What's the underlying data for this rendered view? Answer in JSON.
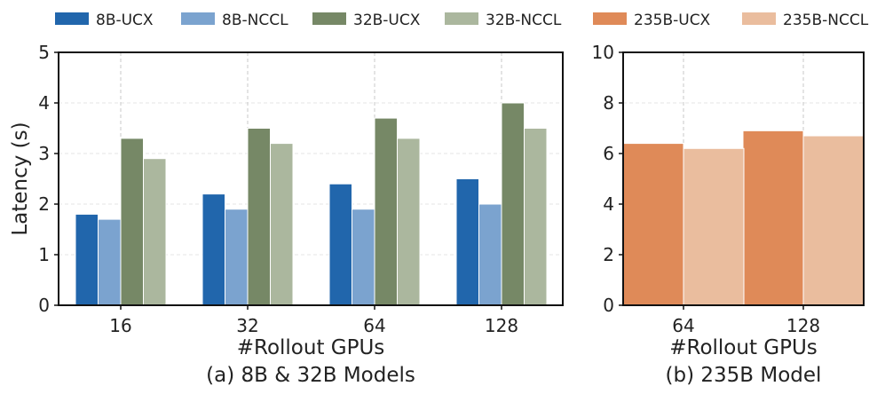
{
  "legend": [
    {
      "key": "8B-UCX",
      "label": "8B-UCX",
      "color": "#2166ac"
    },
    {
      "key": "8B-NCCL",
      "label": "8B-NCCL",
      "color": "#7ba3cf"
    },
    {
      "key": "32B-UCX",
      "label": "32B-UCX",
      "color": "#768866"
    },
    {
      "key": "32B-NCCL",
      "label": "32B-NCCL",
      "color": "#abb79e"
    },
    {
      "key": "235B-UCX",
      "label": "235B-UCX",
      "color": "#df8a58"
    },
    {
      "key": "235B-NCCL",
      "label": "235B-NCCL",
      "color": "#eabd9e"
    }
  ],
  "chart_data": [
    {
      "type": "bar",
      "id": "a",
      "title": "(a) 8B & 32B Models",
      "xlabel": "#Rollout GPUs",
      "ylabel": "Latency (s)",
      "categories": [
        "16",
        "32",
        "64",
        "128"
      ],
      "ylim": [
        0,
        5
      ],
      "yticks": [
        0,
        1,
        2,
        3,
        4,
        5
      ],
      "grid": true,
      "series": [
        {
          "name": "8B-UCX",
          "color": "#2166ac",
          "values": [
            1.8,
            2.2,
            2.4,
            2.5
          ]
        },
        {
          "name": "8B-NCCL",
          "color": "#7ba3cf",
          "values": [
            1.7,
            1.9,
            1.9,
            2.0
          ]
        },
        {
          "name": "32B-UCX",
          "color": "#768866",
          "values": [
            3.3,
            3.5,
            3.7,
            4.0
          ]
        },
        {
          "name": "32B-NCCL",
          "color": "#abb79e",
          "values": [
            2.9,
            3.2,
            3.3,
            3.5
          ]
        }
      ]
    },
    {
      "type": "bar",
      "id": "b",
      "title": "(b) 235B Model",
      "xlabel": "#Rollout GPUs",
      "ylabel": "",
      "categories": [
        "64",
        "128"
      ],
      "ylim": [
        0,
        10
      ],
      "yticks": [
        0,
        2,
        4,
        6,
        8,
        10
      ],
      "grid": true,
      "series": [
        {
          "name": "235B-UCX",
          "color": "#df8a58",
          "values": [
            6.4,
            6.9
          ]
        },
        {
          "name": "235B-NCCL",
          "color": "#eabd9e",
          "values": [
            6.2,
            6.7
          ]
        }
      ]
    }
  ]
}
